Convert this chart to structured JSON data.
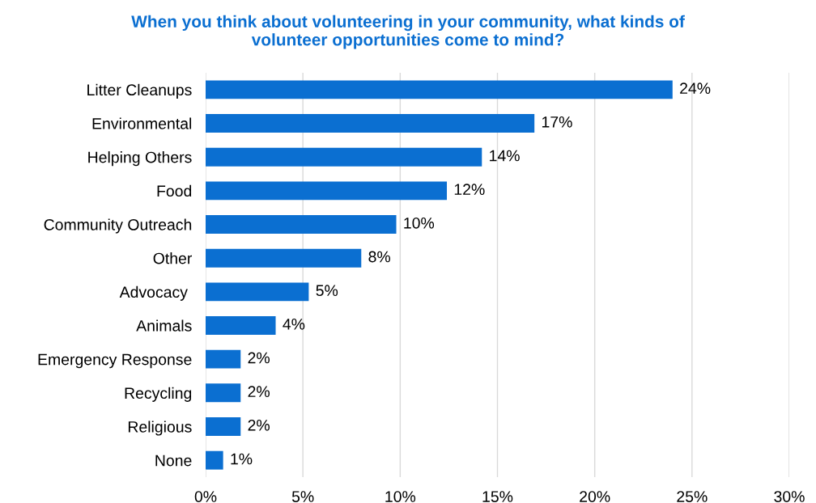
{
  "chart_data": {
    "type": "bar",
    "orientation": "horizontal",
    "title": "When you think about volunteering in your community, what kinds of\nvolunteer opportunities come to mind?",
    "categories": [
      "Litter Cleanups",
      "Environmental",
      "Helping Others",
      "Food",
      "Community Outreach",
      "Other",
      "Advocacy ",
      "Animals",
      "Emergency Response",
      "Recycling",
      "Religious",
      "None"
    ],
    "values": [
      24.0,
      16.9,
      14.2,
      12.4,
      9.8,
      8.0,
      5.3,
      3.6,
      1.8,
      1.8,
      1.8,
      0.9
    ],
    "value_labels": [
      "24%",
      "17%",
      "14%",
      "12%",
      "10%",
      "8%",
      "5%",
      "4%",
      "2%",
      "2%",
      "2%",
      "1%"
    ],
    "color": "#0b6fd1",
    "xlim": [
      0,
      30
    ],
    "xticks": [
      {
        "value": 0,
        "label": "0%"
      },
      {
        "value": 5,
        "label": "5%"
      },
      {
        "value": 10,
        "label": "10%"
      },
      {
        "value": 15,
        "label": "15%"
      },
      {
        "value": 20,
        "label": "20%"
      },
      {
        "value": 25,
        "label": "25%"
      },
      {
        "value": 30,
        "label": "30%"
      }
    ],
    "grid": "x"
  }
}
